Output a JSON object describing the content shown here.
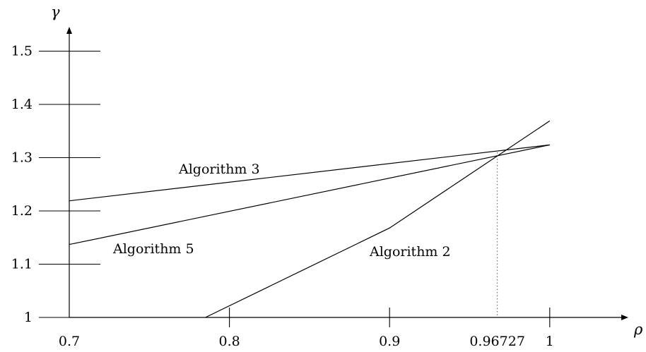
{
  "chart_data": {
    "type": "line",
    "xlabel": "ρ",
    "ylabel": "γ",
    "xlim": [
      0.7,
      1.05
    ],
    "ylim": [
      1.0,
      1.55
    ],
    "x_ticks": [
      {
        "value": 0.7,
        "label": "0.7"
      },
      {
        "value": 0.8,
        "label": "0.8"
      },
      {
        "value": 0.9,
        "label": "0.9"
      },
      {
        "value": 0.96727,
        "label": "0.96727"
      },
      {
        "value": 1.0,
        "label": "1"
      }
    ],
    "y_ticks": [
      {
        "value": 1.0,
        "label": "1"
      },
      {
        "value": 1.1,
        "label": "1.1"
      },
      {
        "value": 1.2,
        "label": "1.2"
      },
      {
        "value": 1.3,
        "label": "1.3"
      },
      {
        "value": 1.4,
        "label": "1.4"
      },
      {
        "value": 1.5,
        "label": "1.5"
      }
    ],
    "series": [
      {
        "name": "Algorithm 3",
        "points": [
          [
            0.7,
            1.219
          ],
          [
            1.0,
            1.324
          ]
        ]
      },
      {
        "name": "Algorithm 5",
        "points": [
          [
            0.7,
            1.137
          ],
          [
            1.0,
            1.324
          ]
        ]
      },
      {
        "name": "Algorithm 2",
        "points": [
          [
            0.785,
            1.0
          ],
          [
            0.9,
            1.168
          ],
          [
            1.0,
            1.369
          ]
        ]
      }
    ],
    "reference_line": {
      "x": 0.96727,
      "y": 1.31,
      "style": "dotted"
    },
    "grid": false,
    "legend": "inline labels"
  }
}
